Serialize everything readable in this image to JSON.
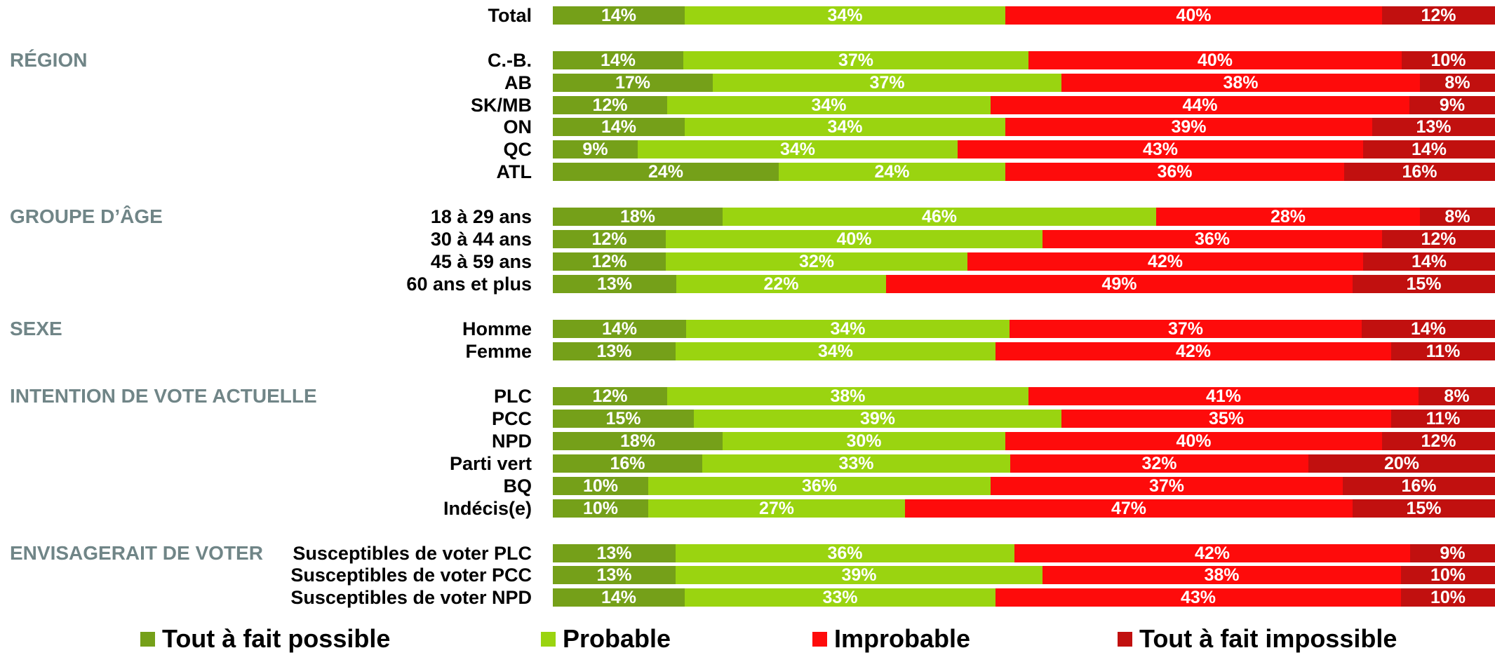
{
  "chart_data": {
    "type": "bar",
    "orientation": "horizontal",
    "stacked": true,
    "unit": "%",
    "xlim": [
      0,
      100
    ],
    "grid": false,
    "legend_position": "bottom",
    "groups": [
      {
        "categories": [
          "Total"
        ]
      },
      {
        "label": "RÉGION",
        "categories": [
          "C.-B.",
          "AB",
          "SK/MB",
          "ON",
          "QC",
          "ATL"
        ]
      },
      {
        "label": "GROUPE D’ÂGE",
        "categories": [
          "18 à 29 ans",
          "30 à 44 ans",
          "45 à 59 ans",
          "60 ans et plus"
        ]
      },
      {
        "label": "SEXE",
        "categories": [
          "Homme",
          "Femme"
        ]
      },
      {
        "label": "INTENTION DE VOTE ACTUELLE",
        "categories": [
          "PLC",
          "PCC",
          "NPD",
          "Parti vert",
          "BQ",
          "Indécis(e)"
        ]
      },
      {
        "label": "ENVISAGERAIT DE VOTER",
        "categories": [
          "Susceptibles de voter PLC",
          "Susceptibles de voter PCC",
          "Susceptibles de voter NPD"
        ]
      }
    ],
    "series": [
      {
        "name": "Tout à fait possible",
        "color": "#75a019",
        "values": [
          14,
          14,
          17,
          12,
          14,
          9,
          24,
          18,
          12,
          12,
          13,
          14,
          13,
          12,
          15,
          18,
          16,
          10,
          10,
          13,
          13,
          14
        ]
      },
      {
        "name": "Probable",
        "color": "#9ad410",
        "values": [
          34,
          37,
          37,
          34,
          34,
          34,
          24,
          46,
          40,
          32,
          22,
          34,
          34,
          38,
          39,
          30,
          33,
          36,
          27,
          36,
          39,
          33
        ]
      },
      {
        "name": "Improbable",
        "color": "#fe0b0b",
        "values": [
          40,
          40,
          38,
          44,
          39,
          43,
          36,
          28,
          36,
          42,
          49,
          37,
          42,
          41,
          35,
          40,
          32,
          37,
          47,
          42,
          38,
          43
        ]
      },
      {
        "name": "Tout à fait impossible",
        "color": "#c1100f",
        "values": [
          12,
          10,
          8,
          9,
          13,
          14,
          16,
          8,
          12,
          14,
          15,
          14,
          11,
          8,
          11,
          12,
          20,
          16,
          15,
          9,
          10,
          10
        ]
      }
    ]
  }
}
